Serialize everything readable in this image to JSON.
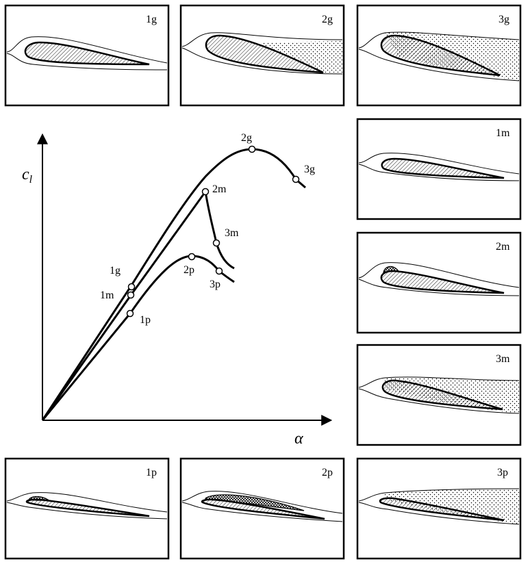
{
  "panels": [
    {
      "id": "1g",
      "label": "1g",
      "shape": "thick",
      "stall": "none",
      "wake": "thin"
    },
    {
      "id": "2g",
      "label": "2g",
      "shape": "thick",
      "stall": "te",
      "wake": "wide"
    },
    {
      "id": "3g",
      "label": "3g",
      "shape": "thick",
      "stall": "full",
      "wake": "wide"
    },
    {
      "id": "1m",
      "label": "1m",
      "shape": "medium",
      "stall": "none",
      "wake": "thin"
    },
    {
      "id": "2m",
      "label": "2m",
      "shape": "medium",
      "stall": "bubble",
      "wake": "thin"
    },
    {
      "id": "3m",
      "label": "3m",
      "shape": "medium",
      "stall": "full",
      "wake": "wide"
    },
    {
      "id": "1p",
      "label": "1p",
      "shape": "thin",
      "stall": "bubble",
      "wake": "thin"
    },
    {
      "id": "2p",
      "label": "2p",
      "shape": "thin",
      "stall": "long-bubble",
      "wake": "thin"
    },
    {
      "id": "3p",
      "label": "3p",
      "shape": "thin",
      "stall": "full",
      "wake": "wide"
    }
  ],
  "chart": {
    "y_axis_label": "c",
    "y_axis_subscript": "l",
    "x_axis_label": "α",
    "points": [
      {
        "label": "1g"
      },
      {
        "label": "2g"
      },
      {
        "label": "3g"
      },
      {
        "label": "1m"
      },
      {
        "label": "2m"
      },
      {
        "label": "3m"
      },
      {
        "label": "1p"
      },
      {
        "label": "2p"
      },
      {
        "label": "3p"
      }
    ]
  },
  "colors": {
    "line": "#000000",
    "panel_border": "#000000",
    "background": "#ffffff"
  }
}
